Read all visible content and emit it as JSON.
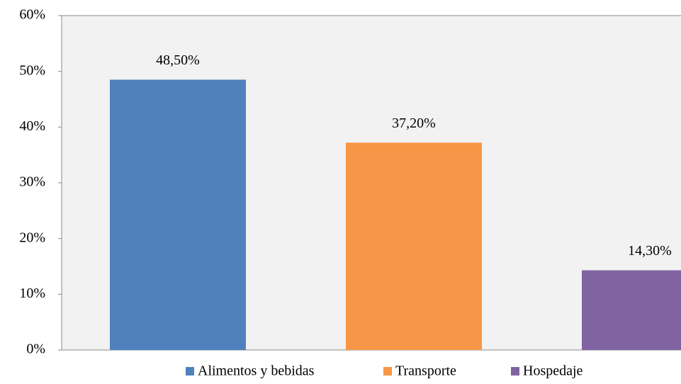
{
  "chart_data": {
    "type": "bar",
    "categories": [
      null
    ],
    "series": [
      {
        "name": "Alimentos y bebidas",
        "color": "#4f81bd",
        "values": [
          48.5
        ],
        "value_labels": [
          "48,50%"
        ]
      },
      {
        "name": "Transporte",
        "color": "#f79646",
        "values": [
          37.2
        ],
        "value_labels": [
          "37,20%"
        ]
      },
      {
        "name": "Hospedaje",
        "color": "#8064a2",
        "values": [
          14.3
        ],
        "value_labels": [
          "14,30%"
        ]
      }
    ],
    "ylim": [
      0,
      60
    ],
    "yticks": [
      {
        "value": 0,
        "label": "0%"
      },
      {
        "value": 10,
        "label": "10%"
      },
      {
        "value": 20,
        "label": "20%"
      },
      {
        "value": 30,
        "label": "30%"
      },
      {
        "value": 40,
        "label": "40%"
      },
      {
        "value": 50,
        "label": "50%"
      },
      {
        "value": 60,
        "label": "60%"
      }
    ],
    "legend": "bottom",
    "plot_background": "#f2f2f2"
  }
}
